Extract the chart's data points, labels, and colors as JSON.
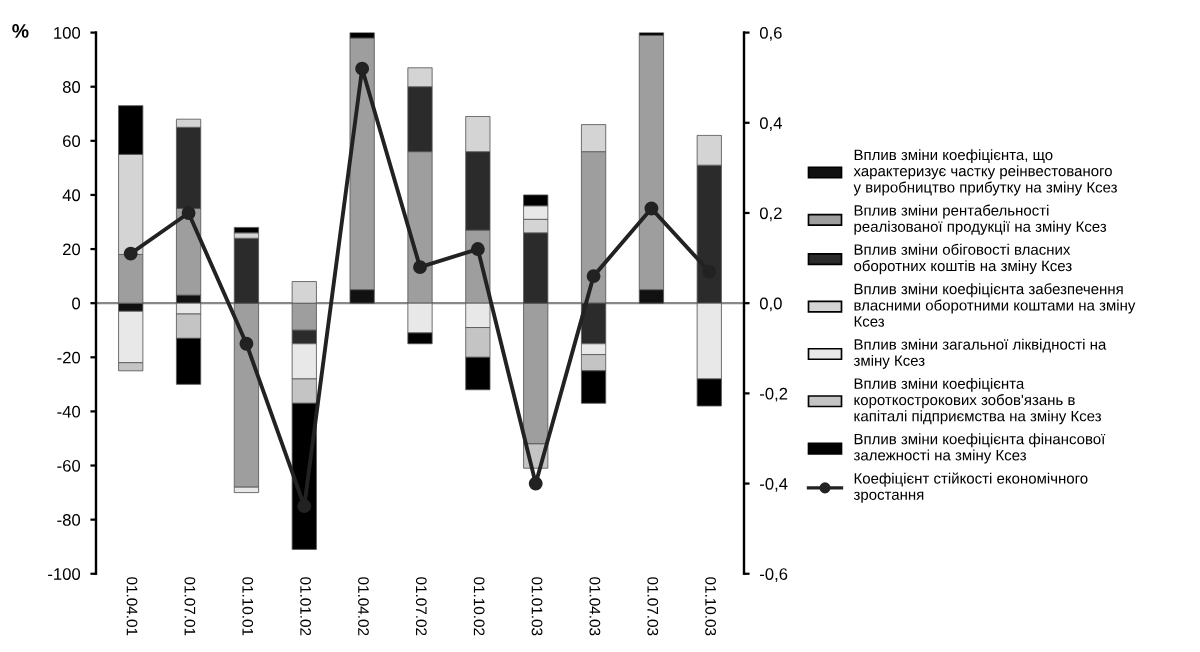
{
  "chart_data": {
    "type": "bar",
    "stacked": true,
    "categories": [
      "01.04.01",
      "01.07.01",
      "01.10.01",
      "01.01.02",
      "01.04.02",
      "01.07.02",
      "01.10.02",
      "01.01.03",
      "01.04.03",
      "01.07.03",
      "01.10.03"
    ],
    "ylabel": "%",
    "series": [
      {
        "name": "Вплив зміни коефіцієнта, що характеризує частку реінвестованого у виробництво прибутку на зміну Ксез",
        "color": "#111111",
        "values": [
          -3,
          3,
          0,
          0,
          5,
          0,
          0,
          0,
          0,
          5,
          0
        ]
      },
      {
        "name": "Вплив зміни рентабельності реалізованої продукції на зміну Ксез",
        "color": "#9e9e9e",
        "values": [
          18,
          32,
          -68,
          -10,
          93,
          56,
          27,
          -52,
          56,
          94,
          0
        ]
      },
      {
        "name": "Вплив зміни обіговості власних оборотних коштів на зміну Ксез",
        "color": "#2b2b2b",
        "values": [
          0,
          30,
          24,
          -5,
          0,
          24,
          29,
          26,
          -15,
          0,
          51
        ]
      },
      {
        "name": "Вплив зміни коефіцієнта забезпечення власними оборотними коштами на зміну Ксез",
        "color": "#d4d4d4",
        "values": [
          37,
          3,
          2,
          8,
          0,
          7,
          13,
          5,
          10,
          0,
          11
        ]
      },
      {
        "name": "Вплив зміни загальної ліквідності на зміну Ксез",
        "color": "#e8e8e8",
        "values": [
          -19,
          -4,
          -2,
          -13,
          0,
          -11,
          -9,
          5,
          -4,
          0,
          -28
        ]
      },
      {
        "name": "Вплив зміни коефіцієнта короткострокових зобов'язань в капіталі підприємства на зміну Ксез",
        "color": "#c4c4c4",
        "values": [
          -3,
          -9,
          0,
          -9,
          0,
          0,
          -11,
          -9,
          -6,
          0,
          0
        ]
      },
      {
        "name": "Вплив зміни коефіцієнта фінансової залежності на зміну Ксез",
        "color": "#000000",
        "values": [
          18,
          -17,
          2,
          -54,
          2,
          -4,
          -12,
          4,
          -12,
          1,
          -10
        ]
      },
      {
        "name": "Коефіцієнт стійкості економічного зростання",
        "type": "line",
        "axis": "y2",
        "color": "#222222",
        "marker": "circle",
        "values": [
          0.11,
          0.2,
          -0.09,
          -0.45,
          0.52,
          0.08,
          0.12,
          -0.4,
          0.06,
          0.21,
          0.07
        ]
      }
    ],
    "ylim": [
      -100,
      100
    ],
    "yticks": [
      -100,
      -80,
      -60,
      -40,
      -20,
      0,
      20,
      40,
      60,
      80,
      100
    ],
    "y2lim": [
      -0.6,
      0.6
    ],
    "y2ticks": [
      {
        "value": -0.6,
        "label": "-0,6"
      },
      {
        "value": -0.4,
        "label": "-0,4"
      },
      {
        "value": -0.2,
        "label": "-0,2"
      },
      {
        "value": 0,
        "label": "0,0"
      },
      {
        "value": 0.2,
        "label": "0,2"
      },
      {
        "value": 0.4,
        "label": "0,4"
      },
      {
        "value": 0.6,
        "label": "0,6"
      }
    ],
    "legend": "right"
  }
}
